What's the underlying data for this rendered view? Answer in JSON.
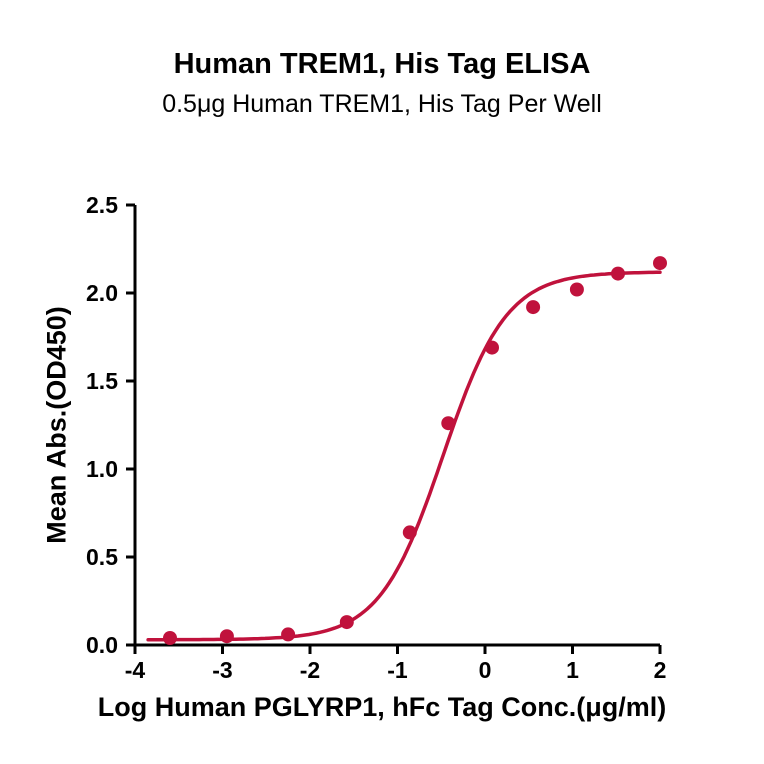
{
  "page": {
    "background": "#ffffff"
  },
  "chart_data": {
    "type": "scatter",
    "title": "Human TREM1, His Tag ELISA",
    "subtitle": "0.5μg Human TREM1, His Tag Per Well",
    "xlabel": "Log Human PGLYRP1, hFc Tag Conc.(μg/ml)",
    "ylabel": "Mean Abs.(OD450)",
    "xlim": [
      -4,
      2
    ],
    "ylim": [
      0,
      2.5
    ],
    "xticks": [
      -4,
      -3,
      -2,
      -1,
      0,
      1,
      2
    ],
    "xtick_labels": [
      "-4",
      "-3",
      "-2",
      "-1",
      "0",
      "1",
      "2"
    ],
    "yticks": [
      0.0,
      0.5,
      1.0,
      1.5,
      2.0,
      2.5
    ],
    "ytick_labels": [
      "0.0",
      "0.5",
      "1.0",
      "1.5",
      "2.0",
      "2.5"
    ],
    "grid": false,
    "legend": null,
    "axis_color": "#000000",
    "marker_color": "#C0123C",
    "curve_color": "#C0123C",
    "points": {
      "x": [
        -3.6,
        -2.95,
        -2.25,
        -1.58,
        -0.86,
        -0.42,
        0.08,
        0.55,
        1.05,
        1.52,
        2.0
      ],
      "y": [
        0.04,
        0.05,
        0.06,
        0.13,
        0.64,
        1.26,
        1.69,
        1.92,
        2.02,
        2.11,
        2.17
      ]
    },
    "fit": {
      "model": "4PL",
      "bottom": 0.03,
      "top": 2.12,
      "logEC50": -0.48,
      "hillslope": 1.2,
      "x_start": -3.85,
      "x_end": 2.0
    }
  }
}
